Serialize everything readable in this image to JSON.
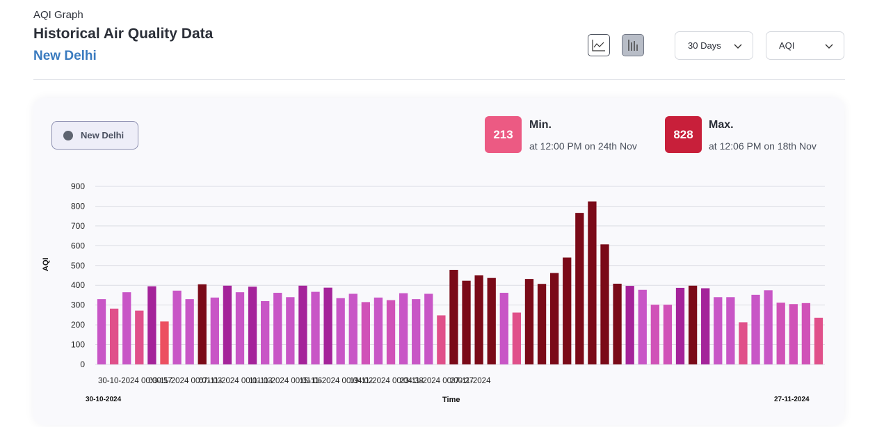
{
  "header": {
    "eyebrow": "AQI Graph",
    "title": "Historical Air Quality Data",
    "location": "New Delhi"
  },
  "controls": {
    "line_chart_icon": "line-chart-icon",
    "bar_chart_icon": "bar-chart-icon",
    "chart_type_selected": "bar",
    "range_select": "30 Days",
    "metric_select": "AQI"
  },
  "legend": {
    "label": "New Delhi",
    "color": "#5e6470"
  },
  "stats": {
    "min": {
      "value": "213",
      "label": "Min.",
      "detail": "at 12:00 PM on 24th Nov",
      "color": "#ec5a83"
    },
    "max": {
      "value": "828",
      "label": "Max.",
      "detail": "at 12:06 PM on 18th Nov",
      "color": "#c81f3a"
    }
  },
  "range": {
    "start": "30-10-2024",
    "end": "27-11-2024"
  },
  "chart_data": {
    "type": "bar",
    "xlabel": "Time",
    "ylabel": "AQI",
    "ylim": [
      0,
      900
    ],
    "yticks": [
      0,
      100,
      200,
      300,
      400,
      500,
      600,
      700,
      800,
      900
    ],
    "grid": true,
    "x_tick_labels": [
      "30-10-2024 00:00:57",
      "03-11-2024 00:01:03",
      "07-11-2024 00:01:03",
      "11-11-2024 00:01:06",
      "15-11-2024 00:04:02",
      "19-11-2024 00:04:38",
      "23-11-2024 00:00:27",
      "27-11-2024"
    ],
    "series": [
      {
        "values": [
          330,
          282,
          365,
          272,
          395,
          217,
          373,
          330,
          405,
          338,
          398,
          365,
          393,
          320,
          362,
          340,
          398,
          367,
          388,
          335,
          357,
          315,
          338,
          325,
          360,
          330,
          357,
          248,
          478,
          423,
          450,
          437,
          362,
          262,
          432,
          407,
          462,
          540,
          766,
          824,
          607,
          408,
          397,
          377,
          302,
          302,
          387,
          398,
          385,
          340,
          340,
          213,
          352,
          375,
          312,
          305,
          310,
          236
        ],
        "colors": [
          "#c856c6",
          "#e0508a",
          "#c856c6",
          "#e0508a",
          "#a4239a",
          "#ec5060",
          "#c856c6",
          "#c856c6",
          "#7a0a18",
          "#c856c6",
          "#a4239a",
          "#c856c6",
          "#a4239a",
          "#c856c6",
          "#c856c6",
          "#c856c6",
          "#a4239a",
          "#c856c6",
          "#a4239a",
          "#c856c6",
          "#c856c6",
          "#d052b8",
          "#c856c6",
          "#d052b8",
          "#c856c6",
          "#c856c6",
          "#c856c6",
          "#e0508a",
          "#7a0a18",
          "#7a0a18",
          "#7a0a18",
          "#7a0a18",
          "#c856c6",
          "#e0508a",
          "#7a0a18",
          "#7a0a18",
          "#7a0a18",
          "#7a0a18",
          "#7a0a18",
          "#7a0a18",
          "#7a0a18",
          "#7a0a18",
          "#a4239a",
          "#c856c6",
          "#d052b8",
          "#d052b8",
          "#a4239a",
          "#7a0a18",
          "#a4239a",
          "#c856c6",
          "#c856c6",
          "#e0508a",
          "#c856c6",
          "#c856c6",
          "#d052b8",
          "#d052b8",
          "#d052b8",
          "#e0508a"
        ]
      }
    ]
  }
}
